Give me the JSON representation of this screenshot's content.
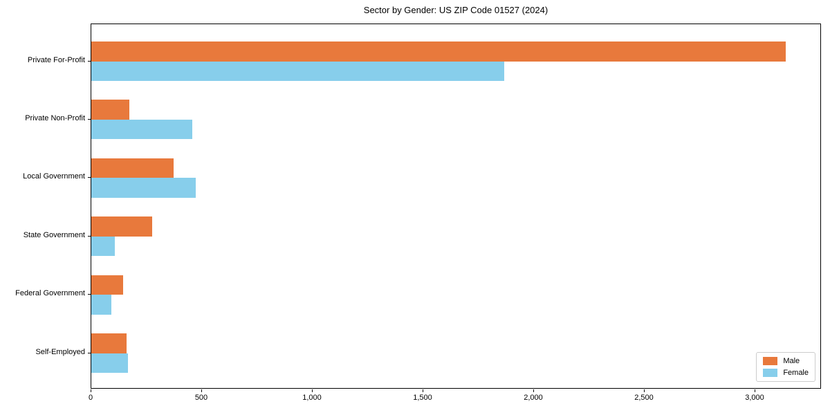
{
  "title": "Sector by Gender: US ZIP Code 01527 (2024)",
  "chart_data": {
    "type": "bar",
    "orientation": "horizontal",
    "title": "Sector by Gender: US ZIP Code 01527 (2024)",
    "categories": [
      "Private For-Profit",
      "Private Non-Profit",
      "Local Government",
      "State Government",
      "Federal Government",
      "Self-Employed"
    ],
    "series": [
      {
        "name": "Male",
        "color": "#e8793c",
        "values": [
          3138,
          172,
          372,
          275,
          144,
          159
        ]
      },
      {
        "name": "Female",
        "color": "#87ceeb",
        "values": [
          1866,
          456,
          472,
          106,
          91,
          166
        ]
      }
    ],
    "xlabel": "",
    "ylabel": "",
    "xlim": [
      0,
      3300
    ],
    "xticks": [
      0,
      500,
      1000,
      1500,
      2000,
      2500,
      3000
    ],
    "xtick_labels": [
      "0",
      "500",
      "1,000",
      "1,500",
      "2,000",
      "2,500",
      "3,000"
    ],
    "grid": false,
    "legend_position": "lower-right",
    "plot_border_color": "#000000",
    "background_color": "#ffffff"
  }
}
